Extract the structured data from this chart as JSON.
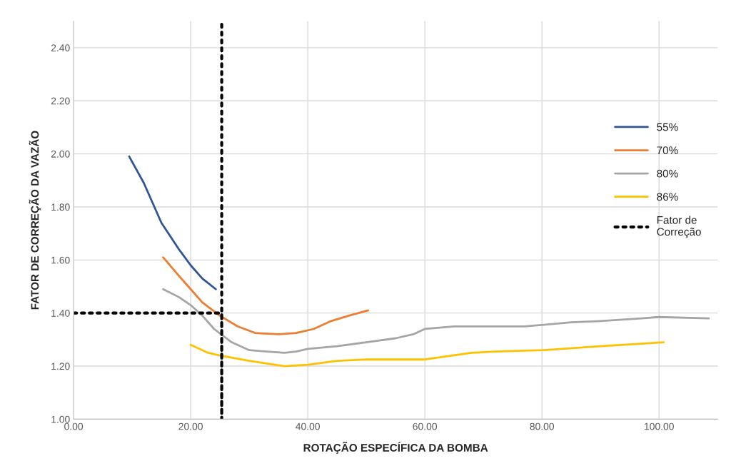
{
  "chart_data": {
    "type": "line",
    "xlabel": "ROTAÇÃO ESPECÍFICA DA BOMBA",
    "ylabel": "FATOR DE CORREÇÃO DA VAZÃO",
    "xlim": [
      0,
      110
    ],
    "ylim": [
      1.0,
      2.5
    ],
    "xticks": [
      {
        "value": 0,
        "label": "0.00"
      },
      {
        "value": 20,
        "label": "20.00"
      },
      {
        "value": 40,
        "label": "40.00"
      },
      {
        "value": 60,
        "label": "60.00"
      },
      {
        "value": 80,
        "label": "80.00"
      },
      {
        "value": 100,
        "label": "100.00"
      }
    ],
    "yticks": [
      {
        "value": 1.0,
        "label": "1.00"
      },
      {
        "value": 1.2,
        "label": "1.20"
      },
      {
        "value": 1.4,
        "label": "1.40"
      },
      {
        "value": 1.6,
        "label": "1.60"
      },
      {
        "value": 1.8,
        "label": "1.80"
      },
      {
        "value": 2.0,
        "label": "2.00"
      },
      {
        "value": 2.2,
        "label": "2.20"
      },
      {
        "value": 2.4,
        "label": "2.40"
      }
    ],
    "grid": true,
    "legend": "right",
    "series": [
      {
        "name": "55%",
        "color": "#2f5597",
        "x": [
          9.5,
          12,
          15,
          18,
          20,
          22,
          24.3
        ],
        "values": [
          1.99,
          1.89,
          1.74,
          1.64,
          1.58,
          1.53,
          1.49
        ]
      },
      {
        "name": "70%",
        "color": "#ed7d31",
        "x": [
          15.3,
          18,
          20,
          22,
          25,
          28,
          31,
          35,
          38,
          41,
          44,
          47,
          50.3
        ],
        "values": [
          1.61,
          1.54,
          1.49,
          1.44,
          1.39,
          1.35,
          1.325,
          1.32,
          1.325,
          1.34,
          1.37,
          1.39,
          1.41
        ]
      },
      {
        "name": "80%",
        "color": "#a5a5a5",
        "x": [
          15.3,
          18,
          20,
          22,
          24,
          27,
          30,
          33,
          36,
          38,
          40,
          45,
          50,
          55,
          58,
          60,
          65,
          70,
          77,
          80,
          85,
          90,
          97,
          100,
          108.5
        ],
        "values": [
          1.49,
          1.46,
          1.43,
          1.39,
          1.34,
          1.29,
          1.26,
          1.255,
          1.25,
          1.255,
          1.265,
          1.275,
          1.29,
          1.305,
          1.32,
          1.34,
          1.35,
          1.35,
          1.35,
          1.355,
          1.365,
          1.37,
          1.38,
          1.385,
          1.38
        ]
      },
      {
        "name": "86%",
        "color": "#ffc000",
        "x": [
          20,
          23,
          25,
          30,
          33,
          36,
          40,
          45,
          50,
          55,
          60,
          63,
          68,
          72,
          80,
          90,
          100.8
        ],
        "values": [
          1.28,
          1.25,
          1.24,
          1.22,
          1.21,
          1.2,
          1.205,
          1.22,
          1.225,
          1.225,
          1.225,
          1.235,
          1.25,
          1.255,
          1.26,
          1.275,
          1.29
        ]
      },
      {
        "name": "Fator de\nCorreção",
        "color": "#000000",
        "line_style": "dotted",
        "x": [
          0,
          25.3,
          25.3,
          25.3
        ],
        "values": [
          1.4,
          1.4,
          1.0,
          2.5
        ]
      }
    ]
  }
}
